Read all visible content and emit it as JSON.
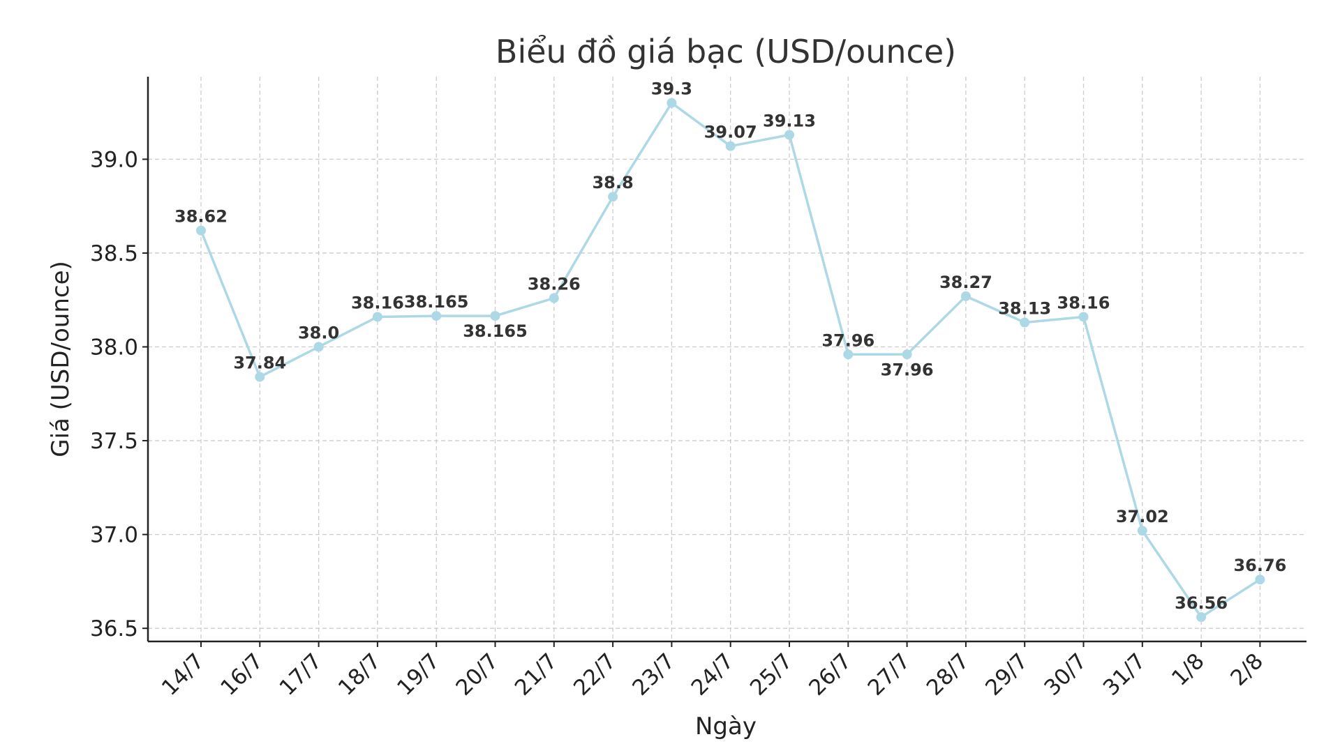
{
  "chart_data": {
    "type": "line",
    "title": "Biểu đồ giá bạc (USD/ounce)",
    "xlabel": "Ngày",
    "ylabel": "Giá (USD/ounce)",
    "categories": [
      "14/7",
      "16/7",
      "17/7",
      "18/7",
      "19/7",
      "20/7",
      "21/7",
      "22/7",
      "23/7",
      "24/7",
      "25/7",
      "26/7",
      "27/7",
      "28/7",
      "29/7",
      "30/7",
      "31/7",
      "1/8",
      "2/8"
    ],
    "series": [
      {
        "values": [
          38.62,
          37.84,
          38.0,
          38.16,
          38.165,
          38.165,
          38.26,
          38.8,
          39.3,
          39.07,
          39.13,
          37.96,
          37.96,
          38.27,
          38.13,
          38.16,
          37.02,
          36.56,
          36.76
        ],
        "data_labels": [
          "38.62",
          "37.84",
          "38.0",
          "38.16",
          "38.165",
          "38.165",
          "38.26",
          "38.8",
          "39.3",
          "39.07",
          "39.13",
          "37.96",
          "37.96",
          "38.27",
          "38.13",
          "38.16",
          "37.02",
          "36.56",
          "36.76"
        ],
        "color": "#add8e6"
      }
    ],
    "ylim": [
      36.43,
      39.44
    ],
    "yticks": [
      36.5,
      37.0,
      37.5,
      38.0,
      38.5,
      39.0
    ],
    "ytick_labels": [
      "36.5",
      "37.0",
      "37.5",
      "38.0",
      "38.5",
      "39.0"
    ],
    "grid": true,
    "legend": "none"
  }
}
